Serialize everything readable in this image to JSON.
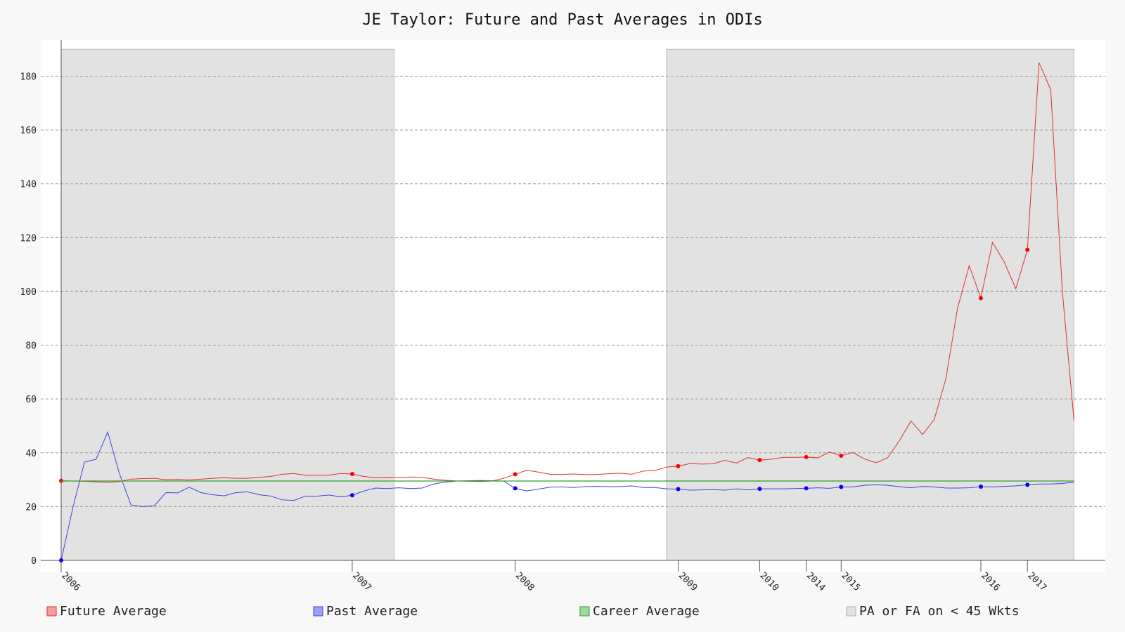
{
  "chart_data": {
    "type": "line",
    "title": "JE Taylor: Future and Past Averages in ODIs",
    "xlabel": "",
    "ylabel": "",
    "ylim": [
      0,
      190
    ],
    "xlim": [
      0,
      88
    ],
    "yticks": [
      0,
      20,
      40,
      60,
      80,
      100,
      120,
      140,
      160,
      180
    ],
    "grid": true,
    "x_ticks": [
      {
        "x": 0,
        "label": "2006"
      },
      {
        "x": 25,
        "label": "2007"
      },
      {
        "x": 39,
        "label": "2008"
      },
      {
        "x": 53,
        "label": "2009"
      },
      {
        "x": 60,
        "label": "2010"
      },
      {
        "x": 64,
        "label": "2014"
      },
      {
        "x": 67,
        "label": "2015"
      },
      {
        "x": 79,
        "label": "2016"
      },
      {
        "x": 83,
        "label": "2017"
      }
    ],
    "series": [
      {
        "name": "Future Average",
        "color": "#e03030",
        "marker_color": "#ff0000",
        "values": [
          29.6,
          29.5,
          29.4,
          29.2,
          29.0,
          29.3,
          30.2,
          30.4,
          30.5,
          30.0,
          30.1,
          29.9,
          30.2,
          30.5,
          30.7,
          30.5,
          30.5,
          30.9,
          31.2,
          32.0,
          32.3,
          31.6,
          31.7,
          31.7,
          32.3,
          32.1,
          31.2,
          30.7,
          30.9,
          30.8,
          31.0,
          30.9,
          30.2,
          29.8,
          29.5,
          29.4,
          29.3,
          29.5,
          30.5,
          32.0,
          33.5,
          32.8,
          32.0,
          31.9,
          32.1,
          31.9,
          31.9,
          32.2,
          32.4,
          32.0,
          33.2,
          33.4,
          34.7,
          35.0,
          36.0,
          35.8,
          35.9,
          37.2,
          36.2,
          38.2,
          37.3,
          37.6,
          38.3,
          38.3,
          38.4,
          38.1,
          40.3,
          38.9,
          40.1,
          37.7,
          36.3,
          38.2,
          44.5,
          51.8,
          46.8,
          52.4,
          67.6,
          93.8,
          109.6,
          97.5,
          118.2,
          111.0,
          101.0,
          115.5,
          185.0,
          175.0,
          100.0,
          52.0
        ],
        "markers": [
          0,
          25,
          39,
          53,
          60,
          64,
          67,
          79,
          83
        ]
      },
      {
        "name": "Past Average",
        "color": "#4040e0",
        "marker_color": "#0000ff",
        "values": [
          0.0,
          19.5,
          36.5,
          37.6,
          47.7,
          32.3,
          20.6,
          20.0,
          20.3,
          25.2,
          25.1,
          27.2,
          25.2,
          24.4,
          24.0,
          25.2,
          25.5,
          24.4,
          23.9,
          22.5,
          22.3,
          23.9,
          23.9,
          24.3,
          23.6,
          24.2,
          25.8,
          26.9,
          26.7,
          27.0,
          26.7,
          26.9,
          28.4,
          29.1,
          29.5,
          29.6,
          29.7,
          29.6,
          29.5,
          26.8,
          25.8,
          26.5,
          27.2,
          27.3,
          27.1,
          27.4,
          27.5,
          27.4,
          27.4,
          27.7,
          27.1,
          27.1,
          26.6,
          26.5,
          26.1,
          26.2,
          26.3,
          26.1,
          26.6,
          26.2,
          26.6,
          26.6,
          26.6,
          26.7,
          26.8,
          27.0,
          26.8,
          27.3,
          27.3,
          27.9,
          28.1,
          27.9,
          27.4,
          27.0,
          27.5,
          27.3,
          26.9,
          26.9,
          27.0,
          27.4,
          27.3,
          27.5,
          27.7,
          28.1,
          28.4,
          28.4,
          28.6,
          29.1
        ],
        "markers": [
          0,
          25,
          39,
          53,
          60,
          64,
          67,
          79,
          83
        ]
      },
      {
        "name": "Career Average",
        "color": "#30a030",
        "constant": 29.5
      }
    ],
    "shaded_regions": {
      "name": "PA or FA on < 45 Wkts",
      "color": "#e2e2e2",
      "polygons": [
        [
          [
            0,
            0
          ],
          [
            0,
            190
          ],
          [
            28.6,
            190
          ],
          [
            28.6,
            0
          ]
        ],
        [
          [
            52.0,
            0
          ],
          [
            52.0,
            190
          ],
          [
            87.0,
            190
          ],
          [
            87.0,
            0
          ],
          [
            52.9,
            0
          ]
        ]
      ]
    },
    "legend": {
      "position": "bottom",
      "entries": [
        {
          "label": "Future Average",
          "color": "#f4a0a0",
          "border": "#e03030"
        },
        {
          "label": "Past Average",
          "color": "#a0a0f4",
          "border": "#4040e0"
        },
        {
          "label": "Career Average",
          "color": "#a0d8a0",
          "border": "#30a030"
        },
        {
          "label": "PA or FA on < 45 Wkts",
          "color": "#e2e2e2",
          "border": "#b0b0b0"
        }
      ]
    }
  }
}
